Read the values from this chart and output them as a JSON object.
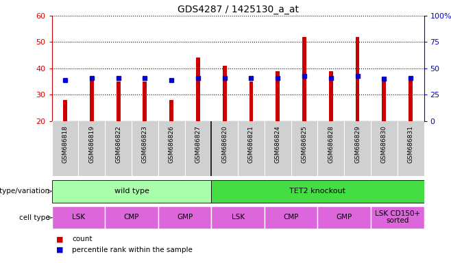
{
  "title": "GDS4287 / 1425130_a_at",
  "samples": [
    "GSM686818",
    "GSM686819",
    "GSM686822",
    "GSM686823",
    "GSM686826",
    "GSM686827",
    "GSM686820",
    "GSM686821",
    "GSM686824",
    "GSM686825",
    "GSM686828",
    "GSM686829",
    "GSM686830",
    "GSM686831"
  ],
  "counts": [
    28,
    36,
    35,
    35,
    28,
    44,
    41,
    35,
    39,
    52,
    39,
    52,
    35,
    36
  ],
  "percentile_ranks": [
    39,
    41,
    41,
    41,
    39,
    41,
    41,
    41,
    41,
    43,
    41,
    43,
    40,
    41
  ],
  "ylim_left": [
    20,
    60
  ],
  "ylim_right": [
    0,
    100
  ],
  "yticks_left": [
    20,
    30,
    40,
    50,
    60
  ],
  "yticks_right": [
    0,
    25,
    50,
    75,
    100
  ],
  "bar_color": "#cc0000",
  "dot_color": "#0000cc",
  "sample_bg_color": "#d0d0d0",
  "wild_type_color": "#aaffaa",
  "tet2_color": "#44dd44",
  "cell_type_color": "#dd66dd",
  "left_axis_color": "#cc0000",
  "right_axis_color": "#0000cc",
  "genotype_groups": [
    {
      "label": "wild type",
      "start": 0,
      "end": 6
    },
    {
      "label": "TET2 knockout",
      "start": 6,
      "end": 14
    }
  ],
  "cell_type_groups": [
    {
      "label": "LSK",
      "start": 0,
      "end": 2
    },
    {
      "label": "CMP",
      "start": 2,
      "end": 4
    },
    {
      "label": "GMP",
      "start": 4,
      "end": 6
    },
    {
      "label": "LSK",
      "start": 6,
      "end": 8
    },
    {
      "label": "CMP",
      "start": 8,
      "end": 10
    },
    {
      "label": "GMP",
      "start": 10,
      "end": 12
    },
    {
      "label": "LSK CD150+\nsorted",
      "start": 12,
      "end": 14
    }
  ],
  "genotype_label": "genotype/variation",
  "celltype_label": "cell type",
  "legend_count": "count",
  "legend_pct": "percentile rank within the sample"
}
